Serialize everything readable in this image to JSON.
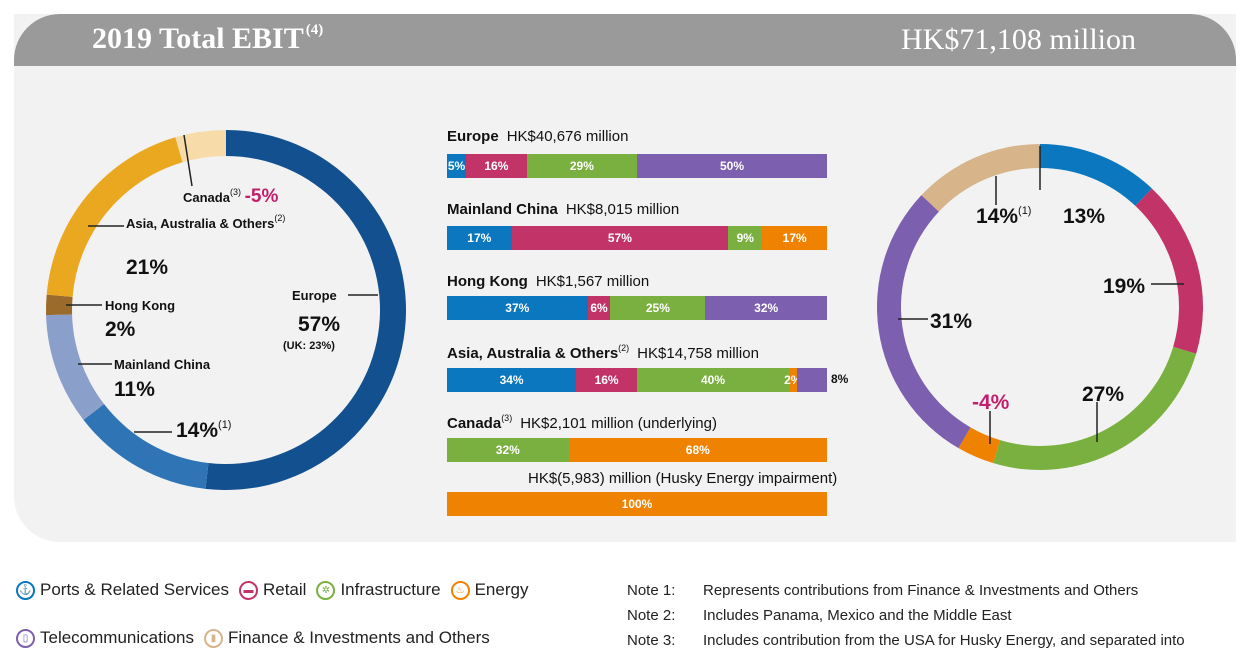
{
  "header": {
    "title": "2019 Total EBIT",
    "title_note": "(4)",
    "total": "HK$71,108 million"
  },
  "colors": {
    "ports": "#0a77bf",
    "retail": "#c23468",
    "infrastructure": "#7ab03f",
    "energy": "#ef8200",
    "telecom": "#7d5fb0",
    "finance": "#d8b48a"
  },
  "chart_data": [
    {
      "type": "pie",
      "variant": "donut",
      "slices": [
        {
          "name": "Europe",
          "value": 57,
          "label": "57%",
          "sub": "(UK: 23%)",
          "color": "#12508f"
        },
        {
          "name": "14%",
          "value": 14,
          "label": "14%",
          "note": "(1)",
          "color": "#2f75b6"
        },
        {
          "name": "Mainland China",
          "value": 11,
          "label": "11%",
          "color": "#8b9fcb"
        },
        {
          "name": "Hong Kong",
          "value": 2,
          "label": "2%",
          "color": "#9a6b2a"
        },
        {
          "name": "Asia, Australia & Others",
          "value": 21,
          "label": "21%",
          "note": "(2)",
          "color": "#eaa820"
        },
        {
          "name": "Canada",
          "value": -5,
          "label": "-5%",
          "note": "(3)",
          "color": "#f7dcaa"
        }
      ]
    },
    {
      "type": "bar",
      "variant": "stacked-100",
      "rows": [
        {
          "name": "Europe",
          "amount": "HK$40,676 million",
          "segments": [
            {
              "category": "ports",
              "value": 5,
              "label": "5%"
            },
            {
              "category": "retail",
              "value": 16,
              "label": "16%"
            },
            {
              "category": "infrastructure",
              "value": 29,
              "label": "29%"
            },
            {
              "category": "telecom",
              "value": 50,
              "label": "50%"
            }
          ]
        },
        {
          "name": "Mainland China",
          "amount": "HK$8,015 million",
          "segments": [
            {
              "category": "ports",
              "value": 17,
              "label": "17%"
            },
            {
              "category": "retail",
              "value": 57,
              "label": "57%"
            },
            {
              "category": "infrastructure",
              "value": 9,
              "label": "9%"
            },
            {
              "category": "energy",
              "value": 17,
              "label": "17%"
            }
          ]
        },
        {
          "name": "Hong Kong",
          "amount": "HK$1,567 million",
          "segments": [
            {
              "category": "ports",
              "value": 37,
              "label": "37%"
            },
            {
              "category": "retail",
              "value": 6,
              "label": "6%"
            },
            {
              "category": "infrastructure",
              "value": 25,
              "label": "25%"
            },
            {
              "category": "telecom",
              "value": 32,
              "label": "32%"
            }
          ]
        },
        {
          "name": "Asia, Australia & Others",
          "note": "(2)",
          "amount": "HK$14,758 million",
          "segments": [
            {
              "category": "ports",
              "value": 34,
              "label": "34%"
            },
            {
              "category": "retail",
              "value": 16,
              "label": "16%"
            },
            {
              "category": "infrastructure",
              "value": 40,
              "label": "40%"
            },
            {
              "category": "energy",
              "value": 2,
              "label": "2%"
            },
            {
              "category": "telecom",
              "value": 8,
              "label": "8%"
            }
          ]
        },
        {
          "name": "Canada",
          "note": "(3)",
          "amount": "HK$2,101 million (underlying)",
          "segments": [
            {
              "category": "infrastructure",
              "value": 32,
              "label": "32%"
            },
            {
              "category": "energy",
              "value": 68,
              "label": "68%"
            }
          ]
        },
        {
          "name": "",
          "amount": "HK$(5,983) million (Husky Energy impairment)",
          "segments": [
            {
              "category": "energy",
              "value": 100,
              "label": "100%"
            }
          ]
        }
      ]
    },
    {
      "type": "pie",
      "variant": "donut",
      "slices": [
        {
          "name": "Ports & Related Services",
          "value": 13,
          "label": "13%",
          "color": "#0a77bf"
        },
        {
          "name": "Retail",
          "value": 19,
          "label": "19%",
          "color": "#c23468"
        },
        {
          "name": "Infrastructure",
          "value": 27,
          "label": "27%",
          "color": "#7ab03f"
        },
        {
          "name": "Energy",
          "value": -4,
          "label": "-4%",
          "color": "#ef8200"
        },
        {
          "name": "Telecommunications",
          "value": 31,
          "label": "31%",
          "color": "#7d5fb0"
        },
        {
          "name": "Finance & Investments and Others",
          "value": 14,
          "label": "14%",
          "note": "(1)",
          "color": "#d8b48a"
        }
      ]
    }
  ],
  "legend": [
    {
      "label": "Ports & Related Services",
      "icon": "anchor-icon"
    },
    {
      "label": "Retail",
      "icon": "cart-icon"
    },
    {
      "label": "Infrastructure",
      "icon": "tower-icon"
    },
    {
      "label": "Energy",
      "icon": "flame-icon"
    },
    {
      "label": "Telecommunications",
      "icon": "phone-icon"
    },
    {
      "label": "Finance & Investments and Others",
      "icon": "chart-icon"
    }
  ],
  "notes": [
    {
      "key": "Note 1:",
      "text": "Represents contributions from Finance & Investments and Others"
    },
    {
      "key": "Note 2:",
      "text": "Includes Panama, Mexico and the Middle East"
    },
    {
      "key": "Note 3:",
      "text": "Includes contribution from the USA for Husky Energy, and separated into"
    }
  ]
}
